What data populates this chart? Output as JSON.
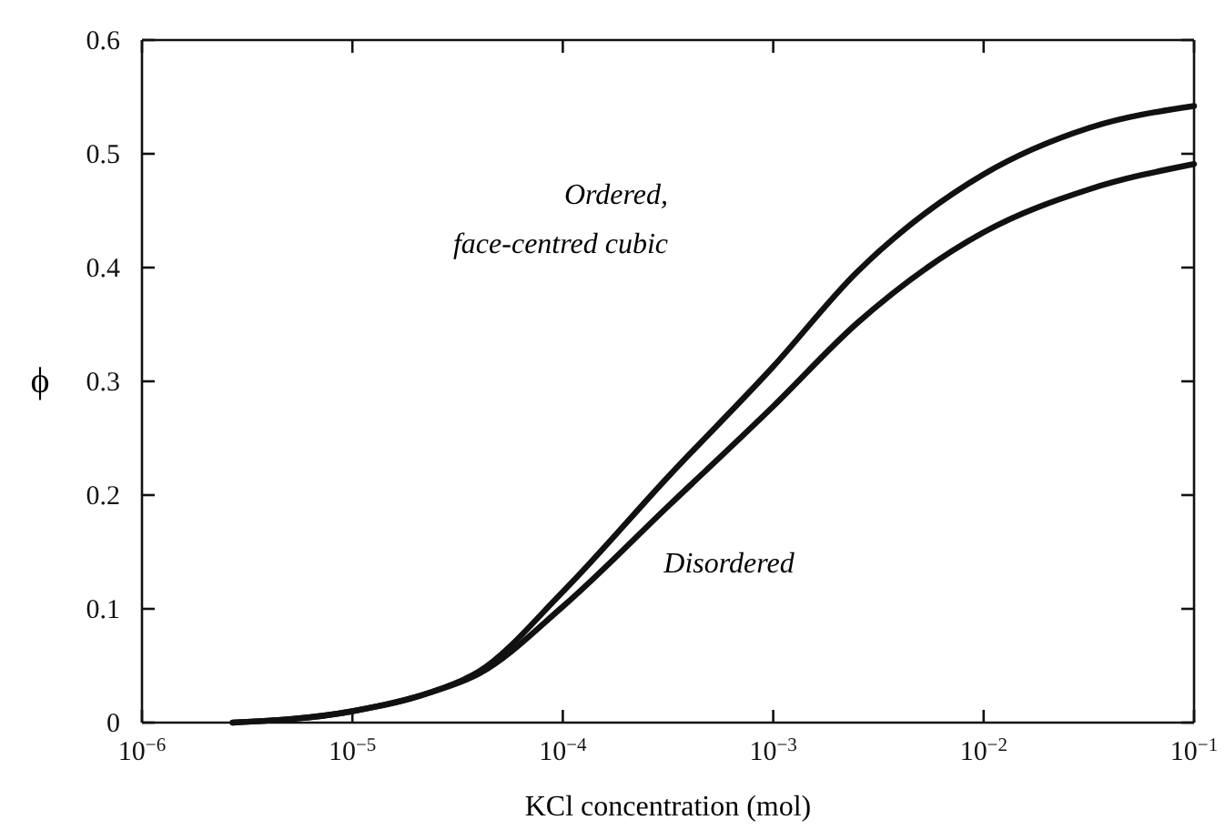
{
  "chart_data": {
    "type": "line",
    "xlabel": "KCl concentration (mol)",
    "ylabel": "ϕ",
    "log": "x",
    "line_style": "solid",
    "marker": "none",
    "grid": false,
    "x": [
      2.7e-06,
      1e-05,
      2.3e-05,
      4e-05,
      0.0001,
      0.00032,
      0.001,
      0.0025,
      0.01,
      0.032,
      0.1
    ],
    "series": [
      {
        "color": "#111111",
        "values": [
          0,
          0.01,
          0.026,
          0.045,
          0.115,
          0.217,
          0.313,
          0.396,
          0.482,
          0.523,
          0.542
        ]
      },
      {
        "color": "#111111",
        "values": [
          0,
          0.01,
          0.026,
          0.043,
          0.102,
          0.191,
          0.278,
          0.351,
          0.431,
          0.469,
          0.491
        ]
      }
    ],
    "xlim": [
      1e-06,
      0.1
    ],
    "ylim": [
      0,
      0.6
    ],
    "xticks": [
      {
        "value": 1e-06,
        "label": "10$^{−6}$"
      },
      {
        "value": 1e-05,
        "label": "10$^{−5}$"
      },
      {
        "value": 0.0001,
        "label": "10$^{−4}$"
      },
      {
        "value": 0.001,
        "label": "10$^{−3}$"
      },
      {
        "value": 0.01,
        "label": "10$^{−2}$"
      },
      {
        "value": 0.1,
        "label": "10$^{−1}$"
      }
    ],
    "yticks": [
      0,
      0.1,
      0.2,
      0.3,
      0.4,
      0.5,
      0.6
    ],
    "annotations": [
      "Ordered,\nface-centred cubic",
      "Disordered"
    ]
  }
}
